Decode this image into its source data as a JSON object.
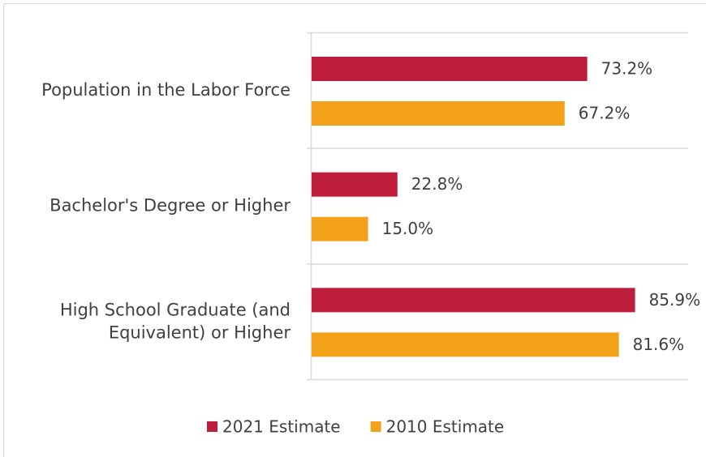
{
  "chart_data": {
    "type": "hbar",
    "categories": [
      "Population in the Labor Force",
      "Bachelor's Degree or Higher",
      "High School Graduate (and Equivalent) or Higher"
    ],
    "series": [
      {
        "name": "2021 Estimate",
        "color": "#be1e3c",
        "values": [
          73.2,
          22.8,
          85.9
        ],
        "value_labels": [
          "73.2%",
          "22.8%",
          "85.9%"
        ]
      },
      {
        "name": "2010 Estimate",
        "color": "#f4a11a",
        "values": [
          67.2,
          15.0,
          81.6
        ],
        "value_labels": [
          "67.2%",
          "15.0%",
          "81.6%"
        ]
      }
    ],
    "xlim": [
      0,
      100
    ],
    "legend": "bottom"
  }
}
